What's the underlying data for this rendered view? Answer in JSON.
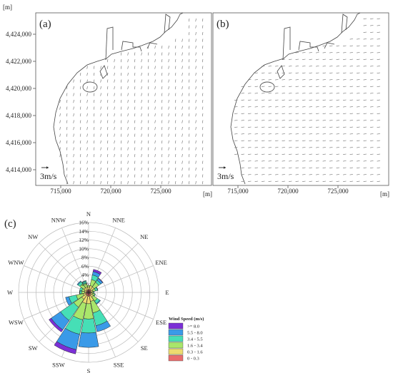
{
  "map_panels": {
    "y_unit": "[m]",
    "x_unit": "[m]",
    "y_ticks": [
      "4,424,000",
      "4,422,000",
      "4,420,000",
      "4,418,000",
      "4,416,000",
      "4,414,000"
    ],
    "x_ticks": [
      "715,000",
      "720,000",
      "725,000"
    ],
    "panel_a": {
      "label": "(a)",
      "scale_label": "3m/s",
      "flow": "southward"
    },
    "panel_b": {
      "label": "(b)",
      "scale_label": "3m/s",
      "flow": "westward"
    }
  },
  "chart_data": {
    "type": "windrose",
    "label": "(c)",
    "directions": [
      "N",
      "NNE",
      "NE",
      "ENE",
      "E",
      "ESE",
      "SE",
      "SSE",
      "S",
      "SSW",
      "SW",
      "WSW",
      "W",
      "WNW",
      "NW",
      "NNW"
    ],
    "radial_ticks": [
      "2%",
      "4%",
      "6%",
      "8%",
      "10%",
      "12%",
      "14%",
      "16%"
    ],
    "rmax": 16,
    "legend_title": "Wind Speed (m/s)",
    "bins": [
      {
        "label": ">= 8.0",
        "color": "#7b2fd6"
      },
      {
        "label": "5.5  -  8.0",
        "color": "#3a9ae8"
      },
      {
        "label": "3.4  -  5.5",
        "color": "#46dfb6"
      },
      {
        "label": "1.6  -  3.4",
        "color": "#a9e66a"
      },
      {
        "label": "0.3  -  1.6",
        "color": "#eddb70"
      },
      {
        "label": "0  -  0.3",
        "color": "#ea6c6c"
      }
    ],
    "cumulative": {
      "N": [
        0.6,
        1.2,
        1.6,
        1.6,
        1.6,
        1.6
      ],
      "NNE": [
        0.7,
        1.6,
        3.0,
        4.1,
        4.9,
        5.4
      ],
      "NE": [
        0.7,
        1.5,
        2.8,
        3.4,
        3.9,
        4.0
      ],
      "ENE": [
        0.5,
        1.0,
        1.6,
        2.1,
        2.2,
        2.2
      ],
      "E": [
        0.5,
        0.8,
        1.1,
        1.3,
        1.3,
        1.3
      ],
      "ESE": [
        0.5,
        0.9,
        1.4,
        1.6,
        1.6,
        1.6
      ],
      "SE": [
        0.6,
        1.3,
        2.4,
        3.1,
        3.3,
        3.3
      ],
      "SSE": [
        0.8,
        2.1,
        4.8,
        7.8,
        9.2,
        9.2
      ],
      "S": [
        0.9,
        2.6,
        6.1,
        9.3,
        12.6,
        12.6
      ],
      "SSW": [
        0.8,
        2.6,
        6.4,
        9.8,
        13.4,
        14.4
      ],
      "SW": [
        0.7,
        1.9,
        4.1,
        7.8,
        10.4,
        11.0
      ],
      "WSW": [
        0.7,
        1.3,
        2.9,
        4.6,
        5.4,
        5.4
      ],
      "W": [
        0.5,
        0.9,
        1.6,
        2.0,
        2.1,
        2.1
      ],
      "WNW": [
        0.5,
        1.0,
        1.6,
        2.1,
        2.1,
        2.1
      ],
      "NW": [
        0.6,
        1.3,
        2.4,
        3.0,
        3.2,
        3.2
      ],
      "NNW": [
        0.6,
        1.3,
        2.1,
        2.7,
        2.8,
        2.8
      ]
    }
  }
}
